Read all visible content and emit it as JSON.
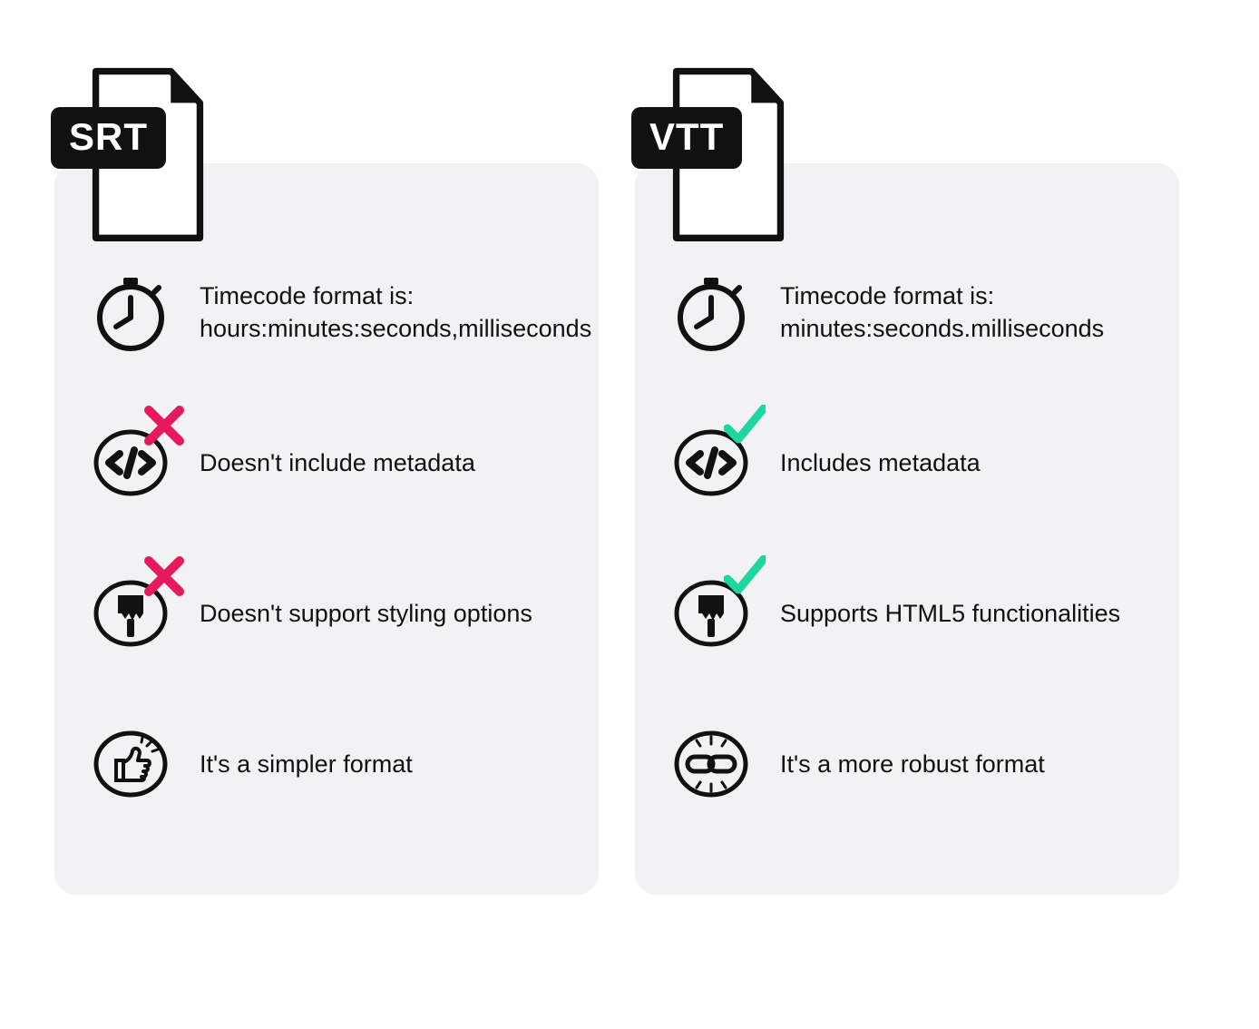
{
  "type": "infographic",
  "layout": "two-columns",
  "background_color": "#ffffff",
  "card_background": "#f2f2f4",
  "card_border_radius": 24,
  "text_color": "#111111",
  "text_fontsize": 27,
  "file_label_fontsize": 42,
  "file_label_bg": "#111111",
  "file_label_fg": "#ffffff",
  "cross_color": "#e6195c",
  "check_color": "#1fd6a0",
  "icon_stroke": "#111111",
  "columns": [
    {
      "key": "srt",
      "file_label": "SRT",
      "rows": [
        {
          "icon": "stopwatch",
          "badge": null,
          "text": "Timecode format is:\nhours:minutes:seconds,milliseconds"
        },
        {
          "icon": "code",
          "badge": "cross",
          "text": "Doesn't include metadata"
        },
        {
          "icon": "brush",
          "badge": "cross",
          "text": "Doesn't support styling options"
        },
        {
          "icon": "thumbs",
          "badge": null,
          "text": "It's a simpler format"
        }
      ]
    },
    {
      "key": "vtt",
      "file_label": "VTT",
      "rows": [
        {
          "icon": "stopwatch",
          "badge": null,
          "text": "Timecode format is:\nminutes:seconds.milliseconds"
        },
        {
          "icon": "code",
          "badge": "check",
          "text": "Includes metadata"
        },
        {
          "icon": "brush",
          "badge": "check",
          "text": "Supports HTML5 functionalities"
        },
        {
          "icon": "link",
          "badge": null,
          "text": "It's a more robust format"
        }
      ]
    }
  ]
}
